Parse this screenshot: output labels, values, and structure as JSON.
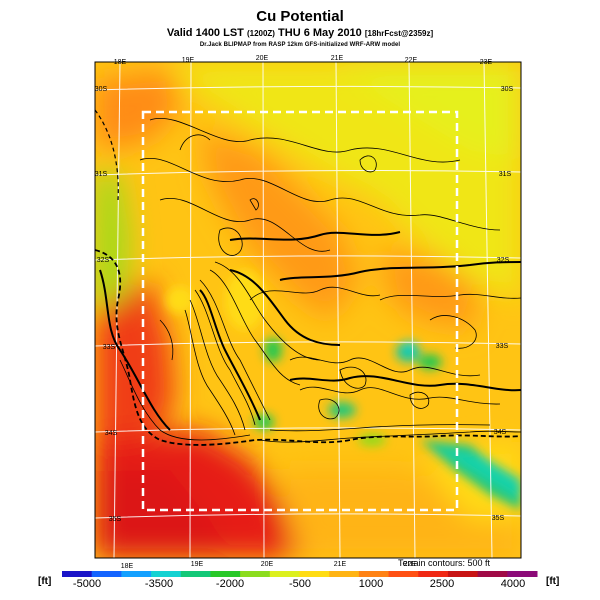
{
  "header": {
    "title": "Cu Potential",
    "subtitle_main": "Valid 1400 LST",
    "subtitle_utc": "(1200Z)",
    "subtitle_date": "THU 6 May 2010",
    "subtitle_fcst": "[18hrFcst@2359z]",
    "credit": "Dr.Jack BLIPMAP from RASP 12km GFS-initialized WRF-ARW model"
  },
  "map": {
    "lon_labels_top": [
      "18E",
      "19E",
      "20E",
      "21E",
      "22E",
      "23E"
    ],
    "lon_labels_bottom": [
      "18E",
      "19E",
      "20E",
      "21E",
      "22E"
    ],
    "lat_labels_left": [
      "30S",
      "31S",
      "32S",
      "33S",
      "34S",
      "35S"
    ],
    "lat_labels_right": [
      "30S",
      "31S",
      "32S",
      "33S",
      "34S",
      "35S"
    ],
    "terrain_note": "Terrain contours: 500 ft"
  },
  "legend": {
    "unit_left": "[ft]",
    "unit_right": "[ft]",
    "labels": [
      "-5000",
      "-3500",
      "-2000",
      "-500",
      "1000",
      "2500",
      "4000"
    ],
    "colors": [
      "#1a14c8",
      "#1464ff",
      "#14a0ff",
      "#14d2d2",
      "#14c878",
      "#28c828",
      "#8cdc1e",
      "#dcf01e",
      "#ffdc14",
      "#ffb414",
      "#ff8214",
      "#ff5014",
      "#f02814",
      "#c81414",
      "#a00a46",
      "#8c0a78"
    ]
  }
}
